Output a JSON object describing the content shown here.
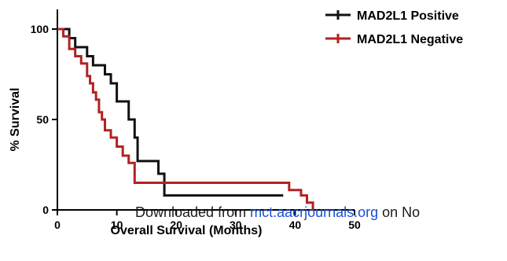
{
  "chart_data": {
    "type": "line",
    "title": "",
    "xlabel": "Overall Survival (Months)",
    "ylabel": "% Survival",
    "xlim": [
      0,
      50
    ],
    "ylim": [
      0,
      100
    ],
    "x_ticks": [
      "0",
      "10",
      "20",
      "30",
      "40",
      "50"
    ],
    "y_ticks": [
      "0",
      "50",
      "100"
    ],
    "grid": false,
    "legend_position": "top-right",
    "series": [
      {
        "name": "MAD2L1 Positive",
        "color": "#111111",
        "step": true,
        "x": [
          0,
          2,
          3,
          5,
          6,
          8,
          9,
          10,
          12,
          13,
          13.5,
          17,
          18,
          38
        ],
        "y": [
          100,
          95,
          90,
          85,
          80,
          75,
          70,
          60,
          50,
          40,
          27,
          20,
          8,
          8
        ]
      },
      {
        "name": "MAD2L1 Negative",
        "color": "#b22222",
        "step": true,
        "x": [
          0,
          1,
          2,
          3,
          4,
          5,
          5.5,
          6,
          6.5,
          7,
          7.5,
          8,
          9,
          10,
          11,
          12,
          13,
          37,
          39,
          41,
          42,
          43
        ],
        "y": [
          100,
          96,
          89,
          85,
          81,
          74,
          70,
          65,
          61,
          54,
          50,
          44,
          40,
          35,
          30,
          26,
          15,
          15,
          11,
          8,
          4,
          0
        ]
      }
    ]
  },
  "watermark": {
    "prefix": "Downloaded from ",
    "link": "mct.aacrjournals.org",
    "suffix": " on No"
  }
}
